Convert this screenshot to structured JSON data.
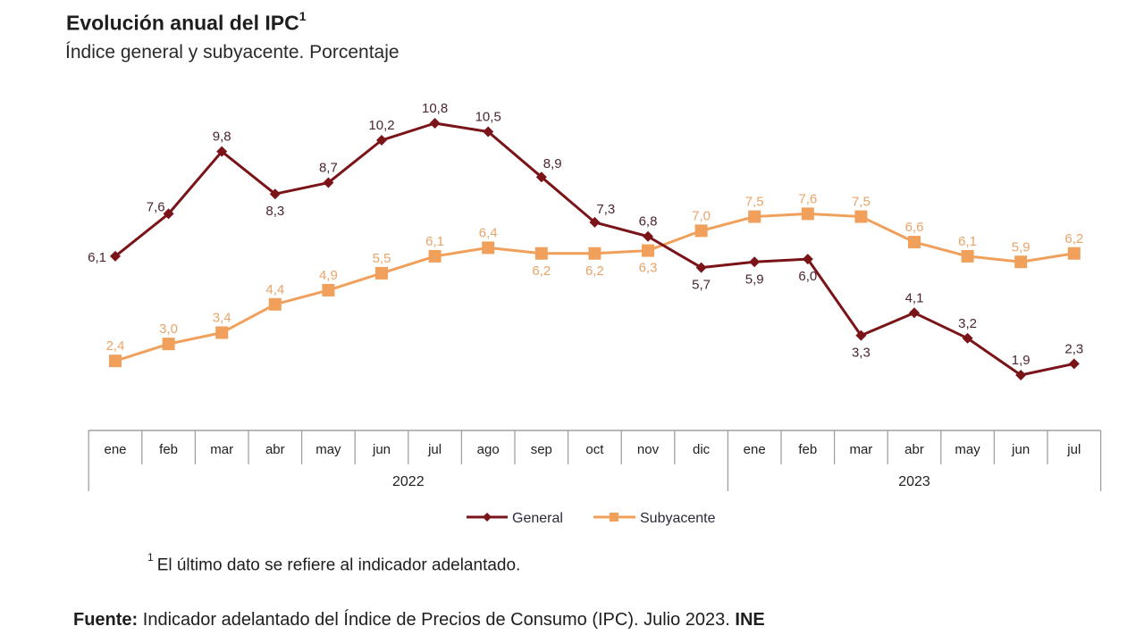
{
  "header": {
    "title": "Evolución anual del IPC",
    "title_sup": "1",
    "subtitle": "Índice general y subyacente. Porcentaje"
  },
  "footnote": {
    "sup": "1",
    "text": "El último dato se refiere al indicador adelantado."
  },
  "source": {
    "label": "Fuente:",
    "text": " Indicador adelantado del Índice de Precios de Consumo (IPC). Julio 2023. ",
    "org": "INE"
  },
  "chart_data": {
    "type": "line",
    "title": "Evolución anual del IPC",
    "subtitle": "Índice general y subyacente. Porcentaje",
    "xlabel": "",
    "ylabel": "",
    "categories": [
      "ene",
      "feb",
      "mar",
      "abr",
      "may",
      "jun",
      "jul",
      "ago",
      "sep",
      "oct",
      "nov",
      "dic",
      "ene",
      "feb",
      "mar",
      "abr",
      "may",
      "jun",
      "jul"
    ],
    "year_groups": [
      {
        "label": "2022",
        "start": 0,
        "end": 11
      },
      {
        "label": "2023",
        "start": 12,
        "end": 18
      }
    ],
    "ylim": [
      1.9,
      10.8
    ],
    "grid": false,
    "legend_position": "bottom",
    "series": [
      {
        "name": "General",
        "color": "#7a1419",
        "marker": "diamond",
        "values": [
          6.1,
          7.6,
          9.8,
          8.3,
          8.7,
          10.2,
          10.8,
          10.5,
          8.9,
          7.3,
          6.8,
          5.7,
          5.9,
          6.0,
          3.3,
          4.1,
          3.2,
          1.9,
          2.3
        ],
        "labels": [
          "6,1",
          "7,6",
          "9,8",
          "8,3",
          "8,7",
          "10,2",
          "10,8",
          "10,5",
          "8,9",
          "7,3",
          "6,8",
          "5,7",
          "5,9",
          "6,0",
          "3,3",
          "4,1",
          "3,2",
          "1,9",
          "2,3"
        ],
        "label_positions": [
          "left",
          "above-left",
          "above",
          "below",
          "above",
          "above",
          "above",
          "above",
          "above-right",
          "above-right",
          "above",
          "below",
          "below",
          "below",
          "below",
          "above",
          "above",
          "above",
          "above"
        ]
      },
      {
        "name": "Subyacente",
        "color": "#f0a05a",
        "marker": "square",
        "values": [
          2.4,
          3.0,
          3.4,
          4.4,
          4.9,
          5.5,
          6.1,
          6.4,
          6.2,
          6.2,
          6.3,
          7.0,
          7.5,
          7.6,
          7.5,
          6.6,
          6.1,
          5.9,
          6.2
        ],
        "labels": [
          "2,4",
          "3,0",
          "3,4",
          "4,4",
          "4,9",
          "5,5",
          "6,1",
          "6,4",
          "6,2",
          "6,2",
          "6,3",
          "7,0",
          "7,5",
          "7,6",
          "7,5",
          "6,6",
          "6,1",
          "5,9",
          "6,2"
        ],
        "label_positions": [
          "above",
          "above",
          "above",
          "above",
          "above",
          "above",
          "above",
          "above",
          "below",
          "below",
          "below",
          "above",
          "above",
          "above",
          "above",
          "above",
          "above",
          "above",
          "above"
        ]
      }
    ]
  }
}
